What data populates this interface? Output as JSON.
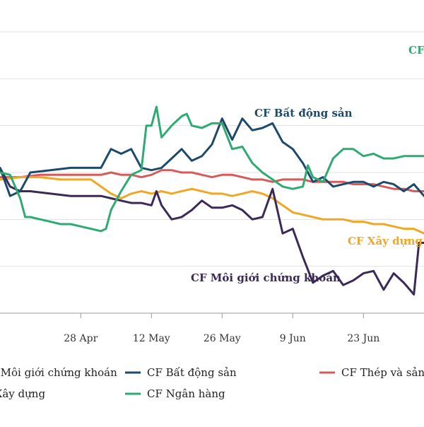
{
  "chart_data": {
    "type": "line",
    "title": "",
    "xlabel": "",
    "ylabel": "",
    "x_ticks": [
      "28 Apr",
      "12 May",
      "26 May",
      "9 Jun",
      "23 Jun"
    ],
    "x_range": [
      0,
      84
    ],
    "x_tick_positions": [
      16,
      30,
      44,
      58,
      72
    ],
    "y_range": [
      0,
      6
    ],
    "grid": true,
    "series": [
      {
        "name": "CF Môi giới chứng khoán",
        "color": "#3b2a57",
        "x": [
          0,
          2,
          4,
          6,
          10,
          14,
          18,
          20,
          22,
          24,
          26,
          28,
          30,
          31,
          32,
          34,
          36,
          38,
          40,
          42,
          44,
          46,
          48,
          50,
          52,
          54,
          56,
          58,
          60,
          62,
          64,
          66,
          68,
          70,
          72,
          74,
          76,
          78,
          80,
          82,
          83,
          84
        ],
        "y": [
          3.1,
          2.7,
          2.6,
          2.6,
          2.55,
          2.5,
          2.5,
          2.5,
          2.45,
          2.4,
          2.35,
          2.35,
          2.3,
          2.6,
          2.3,
          2.0,
          2.05,
          2.2,
          2.4,
          2.25,
          2.25,
          2.3,
          2.2,
          2.0,
          2.05,
          2.65,
          1.7,
          1.8,
          1.2,
          0.65,
          0.8,
          0.9,
          0.6,
          0.7,
          0.85,
          0.9,
          0.5,
          0.85,
          0.65,
          0.4,
          1.5,
          1.5
        ]
      },
      {
        "name": "CF Bất động sản",
        "color": "#1d4a6b",
        "x": [
          0,
          2,
          4,
          6,
          10,
          14,
          18,
          20,
          22,
          24,
          26,
          28,
          30,
          32,
          34,
          36,
          38,
          40,
          42,
          44,
          46,
          48,
          50,
          52,
          54,
          56,
          58,
          60,
          62,
          64,
          66,
          68,
          70,
          72,
          74,
          76,
          78,
          80,
          82,
          84
        ],
        "y": [
          3.1,
          2.5,
          2.6,
          3.0,
          3.05,
          3.1,
          3.1,
          3.1,
          3.5,
          3.4,
          3.5,
          3.1,
          3.05,
          3.1,
          3.3,
          3.5,
          3.25,
          3.35,
          3.6,
          4.15,
          3.7,
          4.15,
          3.9,
          3.95,
          4.05,
          3.65,
          3.5,
          3.2,
          2.8,
          2.9,
          2.7,
          2.75,
          2.8,
          2.8,
          2.7,
          2.8,
          2.75,
          2.6,
          2.75,
          2.5
        ]
      },
      {
        "name": "CF Thép và sản phẩm từ thép",
        "color": "#d65a5a",
        "x": [
          0,
          4,
          8,
          12,
          16,
          18,
          20,
          22,
          24,
          26,
          28,
          30,
          32,
          34,
          36,
          38,
          40,
          42,
          44,
          46,
          48,
          50,
          52,
          54,
          56,
          58,
          60,
          62,
          64,
          66,
          68,
          70,
          72,
          74,
          76,
          78,
          80,
          82,
          84
        ],
        "y": [
          2.9,
          2.9,
          2.95,
          2.95,
          2.95,
          2.95,
          2.95,
          3.0,
          2.95,
          2.95,
          2.9,
          2.95,
          3.05,
          3.05,
          3.0,
          3.0,
          2.95,
          2.9,
          2.95,
          2.95,
          2.9,
          2.85,
          2.85,
          2.8,
          2.85,
          2.85,
          2.85,
          2.8,
          2.8,
          2.8,
          2.8,
          2.75,
          2.75,
          2.75,
          2.7,
          2.65,
          2.65,
          2.6,
          2.6
        ]
      },
      {
        "name": "CF Xây dựng",
        "color": "#efa726",
        "x": [
          0,
          4,
          8,
          12,
          16,
          18,
          20,
          22,
          24,
          26,
          28,
          30,
          32,
          34,
          36,
          38,
          40,
          42,
          44,
          46,
          48,
          50,
          52,
          54,
          56,
          58,
          60,
          62,
          64,
          66,
          68,
          70,
          72,
          74,
          76,
          78,
          80,
          82,
          84
        ],
        "y": [
          2.85,
          2.9,
          2.9,
          2.85,
          2.85,
          2.85,
          2.7,
          2.55,
          2.45,
          2.55,
          2.6,
          2.55,
          2.6,
          2.55,
          2.6,
          2.65,
          2.6,
          2.55,
          2.55,
          2.5,
          2.55,
          2.6,
          2.55,
          2.45,
          2.3,
          2.15,
          2.1,
          2.05,
          2.0,
          2.0,
          2.0,
          1.95,
          1.95,
          1.9,
          1.9,
          1.85,
          1.8,
          1.8,
          1.7
        ]
      },
      {
        "name": "CF Ngân hàng",
        "color": "#2eab70",
        "x": [
          0,
          2,
          4,
          5,
          6,
          8,
          10,
          12,
          14,
          16,
          18,
          20,
          21,
          22,
          24,
          26,
          28,
          29,
          30,
          31,
          32,
          34,
          36,
          37,
          38,
          40,
          42,
          44,
          46,
          48,
          50,
          52,
          54,
          56,
          58,
          60,
          61,
          62,
          64,
          66,
          68,
          70,
          72,
          74,
          76,
          78,
          80,
          82,
          84
        ],
        "y": [
          3.0,
          2.95,
          2.45,
          2.05,
          2.05,
          2.0,
          1.95,
          1.9,
          1.9,
          1.85,
          1.8,
          1.75,
          1.8,
          2.2,
          2.6,
          2.95,
          3.05,
          4.0,
          4.0,
          4.4,
          3.75,
          4.0,
          4.2,
          4.25,
          4.0,
          3.95,
          4.05,
          4.05,
          3.5,
          3.55,
          3.2,
          3.0,
          2.85,
          2.7,
          2.65,
          2.7,
          3.15,
          2.9,
          2.8,
          3.3,
          3.5,
          3.5,
          3.35,
          3.4,
          3.3,
          3.3,
          3.35,
          3.35,
          3.35
        ]
      }
    ]
  },
  "annotations": {
    "bds": "CF Bất động sản",
    "xaydung": "CF Xây dựng",
    "moigioi": "CF Môi giới chứng khoán",
    "nganhang": "CF Ngân hàng"
  },
  "legend": {
    "items": [
      {
        "label": "CF Môi giới chứng khoán",
        "color": "#3b2a57"
      },
      {
        "label": "CF Bất động sản",
        "color": "#1d4a6b"
      },
      {
        "label": "CF Thép và sản phẩm từ thép",
        "color": "#d65a5a"
      },
      {
        "label": "CF Xây dựng",
        "color": "#efa726"
      },
      {
        "label": "CF Ngân hàng",
        "color": "#2eab70"
      }
    ]
  }
}
